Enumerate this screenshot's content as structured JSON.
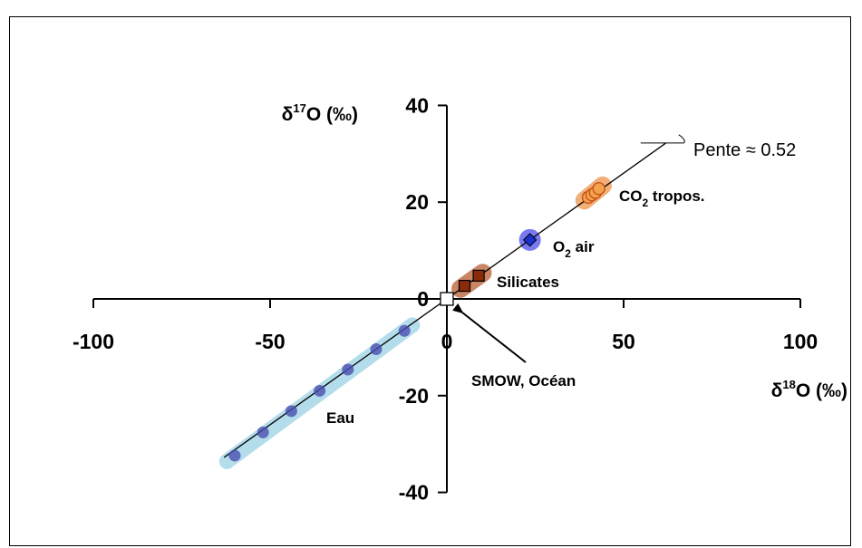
{
  "chart_data": {
    "type": "scatter",
    "xlabel": {
      "base": "δ",
      "sup": "18",
      "rest": "O (‰)"
    },
    "ylabel": {
      "base": "δ",
      "sup": "17",
      "rest": "O (‰)"
    },
    "xlim": [
      -100,
      100
    ],
    "ylim": [
      -40,
      40
    ],
    "x_ticks": [
      -100,
      -50,
      0,
      50,
      100
    ],
    "y_ticks": [
      40,
      20,
      0,
      -20,
      -40
    ],
    "slope_label": "Pente ≈ 0.52",
    "slope": 0.52,
    "groups": [
      {
        "name": "Eau",
        "marker": "circle",
        "color": "#4a4fb0",
        "band_color": "#a8d8e8",
        "points": [
          [
            -60,
            -32.4
          ],
          [
            -52,
            -27.6
          ],
          [
            -44,
            -23.2
          ],
          [
            -36,
            -19.0
          ],
          [
            -28,
            -14.6
          ],
          [
            -20,
            -10.4
          ],
          [
            -12,
            -6.6
          ]
        ]
      },
      {
        "name": "Silicates",
        "marker": "square",
        "color": "#8b2a0a",
        "band_color": "#c0704a",
        "points": [
          [
            5,
            2.7
          ],
          [
            9,
            4.8
          ]
        ]
      },
      {
        "name": "O2 air",
        "label": {
          "base": "O",
          "sub": "2",
          "rest": " air"
        },
        "marker": "diamond",
        "color": "#1a2fd0",
        "band_color": "#6a6cf0",
        "points": [
          [
            23.5,
            12.2
          ]
        ]
      },
      {
        "name": "CO2 tropos.",
        "label": {
          "base": "CO",
          "sub": "2",
          "rest": " tropos."
        },
        "marker": "circle-open",
        "color": "#e0701a",
        "band_color": "#f0a060",
        "points": [
          [
            40,
            21
          ],
          [
            41,
            21.5
          ],
          [
            42,
            22
          ],
          [
            43,
            22.8
          ]
        ]
      },
      {
        "name": "SMOW, Océan",
        "marker": "square-open",
        "color": "#000000",
        "points": [
          [
            0,
            0
          ]
        ]
      }
    ]
  }
}
